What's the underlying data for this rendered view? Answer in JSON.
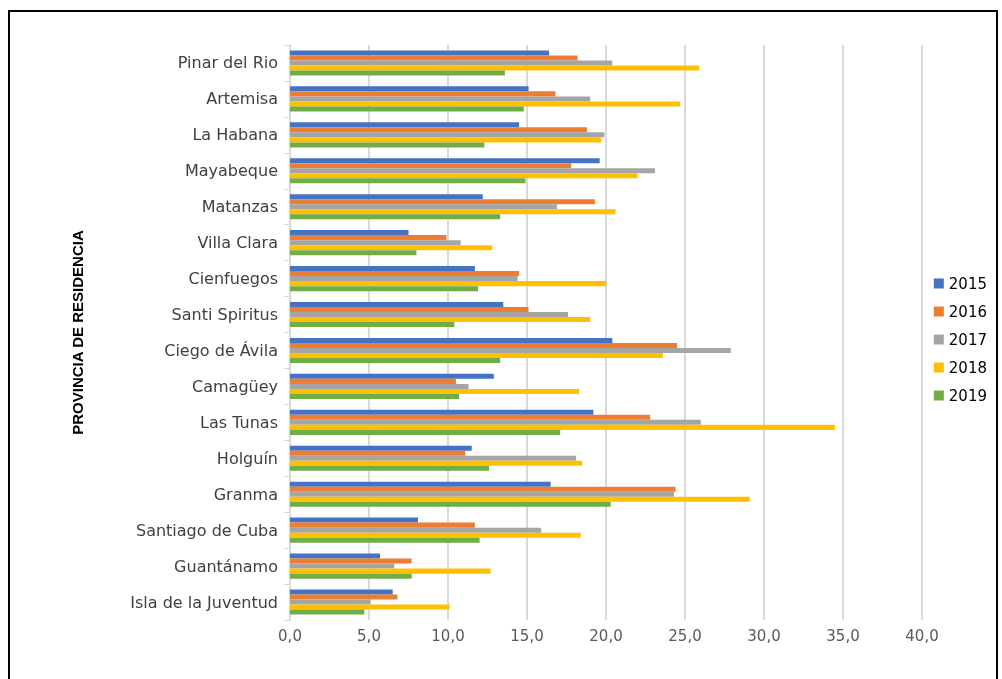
{
  "chart_data": {
    "type": "bar",
    "orientation": "horizontal",
    "ylabel": "PROVINCIA DE RESIDENCIA",
    "categories": [
      "Pinar del Rio",
      "Artemisa",
      "La Habana",
      "Mayabeque",
      "Matanzas",
      "Villa Clara",
      "Cienfuegos",
      "Santi Spiritus",
      "Ciego de Ávila",
      "Camagüey",
      "Las Tunas",
      "Holguín",
      "Granma",
      "Santiago de Cuba",
      "Guantánamo",
      "Isla de la Juventud"
    ],
    "series": [
      {
        "name": "2015",
        "color": "#4472c4",
        "values": [
          16.4,
          15.1,
          14.5,
          19.6,
          12.2,
          7.5,
          11.7,
          13.5,
          20.4,
          12.9,
          19.2,
          11.5,
          16.5,
          8.1,
          5.7,
          6.5
        ]
      },
      {
        "name": "2016",
        "color": "#ed7d31",
        "values": [
          18.2,
          16.8,
          18.8,
          17.8,
          19.3,
          9.9,
          14.5,
          15.1,
          24.5,
          10.5,
          22.8,
          11.1,
          24.4,
          11.7,
          7.7,
          6.8
        ]
      },
      {
        "name": "2017",
        "color": "#a5a5a5",
        "values": [
          20.4,
          19.0,
          19.9,
          23.1,
          16.9,
          10.8,
          14.4,
          17.6,
          27.9,
          11.3,
          26.0,
          18.1,
          24.3,
          15.9,
          6.6,
          5.1
        ]
      },
      {
        "name": "2018",
        "color": "#ffc000",
        "values": [
          25.9,
          24.7,
          19.7,
          22.0,
          20.6,
          12.8,
          20.0,
          19.0,
          23.6,
          18.3,
          34.5,
          18.5,
          29.1,
          18.4,
          12.7,
          10.1
        ]
      },
      {
        "name": "2019",
        "color": "#70ad47",
        "values": [
          13.6,
          14.8,
          12.3,
          14.9,
          13.3,
          8.0,
          11.9,
          10.4,
          13.3,
          10.7,
          17.1,
          12.6,
          20.3,
          12.0,
          7.7,
          4.7
        ]
      }
    ],
    "xlim": [
      0,
      40
    ],
    "xticks": [
      {
        "value": 0,
        "label": "0,0"
      },
      {
        "value": 5,
        "label": "5,0"
      },
      {
        "value": 10,
        "label": "10,0"
      },
      {
        "value": 15,
        "label": "15,0"
      },
      {
        "value": 20,
        "label": "20,0"
      },
      {
        "value": 25,
        "label": "25,0"
      },
      {
        "value": 30,
        "label": "30,0"
      },
      {
        "value": 35,
        "label": "35,0"
      },
      {
        "value": 40,
        "label": "40,0"
      }
    ],
    "grid": "x",
    "legend": "right"
  }
}
